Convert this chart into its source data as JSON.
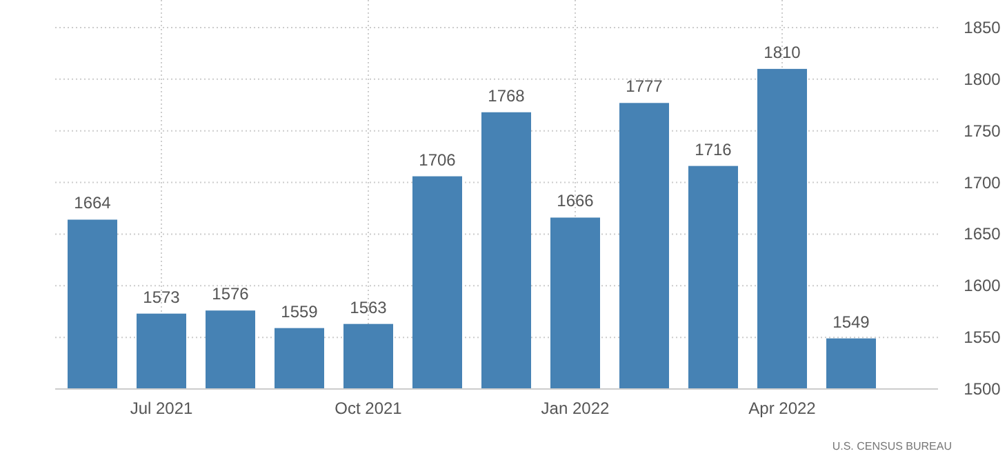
{
  "chart_data": {
    "type": "bar",
    "categories": [
      null,
      "Jul 2021",
      null,
      null,
      "Oct 2021",
      null,
      null,
      "Jan 2022",
      null,
      null,
      "Apr 2022",
      null
    ],
    "values": [
      1664,
      1573,
      1576,
      1559,
      1563,
      1706,
      1768,
      1666,
      1777,
      1716,
      1810,
      1549
    ],
    "color": "#4682b4",
    "ylim": [
      1500,
      1850
    ],
    "yticks": [
      1500,
      1550,
      1600,
      1650,
      1700,
      1750,
      1800,
      1850
    ],
    "grid": true,
    "data_labels": true,
    "annotations": [
      "U.S. CENSUS BUREAU"
    ]
  }
}
